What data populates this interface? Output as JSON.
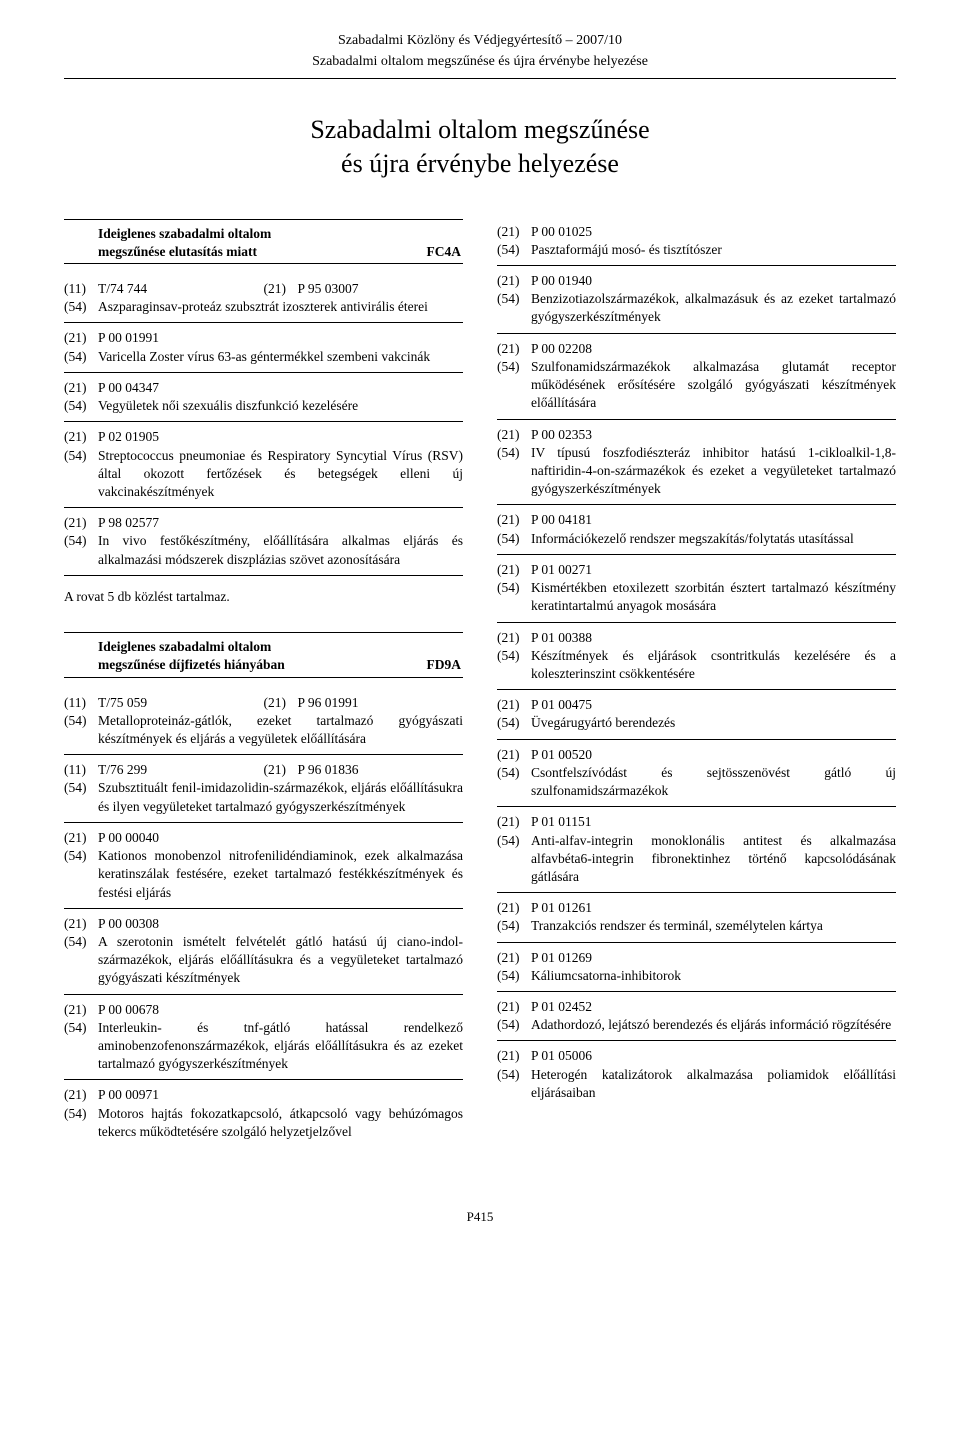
{
  "header": {
    "line1": "Szabadalmi Közlöny és Védjegyértesítő – 2007/10",
    "line2": "Szabadalmi oltalom megszűnése és újra érvénybe helyezése"
  },
  "main_title_l1": "Szabadalmi oltalom megszűnése",
  "main_title_l2": "és újra érvénybe helyezése",
  "footer": "P415",
  "section1": {
    "title_l1": "Ideiglenes szabadalmi oltalom",
    "title_l2": "megszűnése elutasítás miatt",
    "code": "FC4A"
  },
  "section2": {
    "title_l1": "Ideiglenes szabadalmi oltalom",
    "title_l2": "megszűnése díjfizetés hiányában",
    "code": "FD9A"
  },
  "note": "A rovat 5 db közlést tartalmaz.",
  "left_s1": [
    {
      "c11": "(11)",
      "v11": "T/74 744",
      "c21": "(21)",
      "v21": "P 95 03007",
      "c54": "(54)",
      "v54": "Aszparaginsav-proteáz szubsztrát izoszterek antivirális éterei"
    },
    {
      "c21": "(21)",
      "v21": "P 00 01991",
      "c54": "(54)",
      "v54": "Varicella Zoster vírus 63-as géntermékkel szembeni vakcinák"
    },
    {
      "c21": "(21)",
      "v21": "P 00 04347",
      "c54": "(54)",
      "v54": "Vegyületek női szexuális diszfunkció kezelésére"
    },
    {
      "c21": "(21)",
      "v21": "P 02 01905",
      "c54": "(54)",
      "v54": "Streptococcus pneumoniae és Respiratory Syncytial Vírus (RSV) által okozott fertőzések és betegségek elleni új vakcinakészítmények"
    },
    {
      "c21": "(21)",
      "v21": "P 98 02577",
      "c54": "(54)",
      "v54": "In vivo festőkészítmény, előállítására alkalmas eljárás és alkalmazási módszerek diszplázias szövet azonosítására"
    }
  ],
  "left_s2": [
    {
      "c11": "(11)",
      "v11": "T/75 059",
      "c21": "(21)",
      "v21": "P 96 01991",
      "c54": "(54)",
      "v54": "Metalloproteináz-gátlók, ezeket tartalmazó gyógyászati készítmények és eljárás a vegyületek előállítására"
    },
    {
      "c11": "(11)",
      "v11": "T/76 299",
      "c21": "(21)",
      "v21": "P 96 01836",
      "c54": "(54)",
      "v54": "Szubsztituált fenil-imidazolidin-származékok, eljárás előállításukra és ilyen vegyületeket tartalmazó gyógyszerkészítmények"
    },
    {
      "c21": "(21)",
      "v21": "P 00 00040",
      "c54": "(54)",
      "v54": "Kationos monobenzol nitrofenilidéndiaminok, ezek alkalmazása keratinszálak festésére, ezeket tartalmazó festékkészítmények és festési eljárás"
    },
    {
      "c21": "(21)",
      "v21": "P 00 00308",
      "c54": "(54)",
      "v54": "A szerotonin ismételt felvételét gátló hatású új ciano-indol-származékok, eljárás előállításukra és a vegyületeket tartalmazó gyógyászati készítmények"
    },
    {
      "c21": "(21)",
      "v21": "P 00 00678",
      "c54": "(54)",
      "v54": "Interleukin- és tnf-gátló hatással rendelkező aminobenzofenonszármazékok, eljárás előállításukra és az ezeket tartalmazó gyógyszerkészítmények"
    },
    {
      "c21": "(21)",
      "v21": "P 00 00971",
      "c54": "(54)",
      "v54": "Motoros hajtás fokozatkapcsoló, átkapcsoló vagy behúzómagos tekercs működtetésére szolgáló helyzetjelzővel"
    }
  ],
  "right": [
    {
      "c21": "(21)",
      "v21": "P 00 01025",
      "c54": "(54)",
      "v54": "Pasztaformájú mosó- és tisztítószer"
    },
    {
      "c21": "(21)",
      "v21": "P 00 01940",
      "c54": "(54)",
      "v54": "Benzizotiazolszármazékok, alkalmazásuk és az ezeket tartalmazó gyógyszerkészítmények"
    },
    {
      "c21": "(21)",
      "v21": "P 00 02208",
      "c54": "(54)",
      "v54": "Szulfonamidszármazékok alkalmazása glutamát receptor működésének erősítésére szolgáló gyógyászati készítmények előállítására"
    },
    {
      "c21": "(21)",
      "v21": "P 00 02353",
      "c54": "(54)",
      "v54": "IV típusú foszfodiészteráz inhibitor hatású 1-cikloalkil-1,8-naftiridin-4-on-származékok és ezeket a vegyületeket tartalmazó gyógyszerkészítmények"
    },
    {
      "c21": "(21)",
      "v21": "P 00 04181",
      "c54": "(54)",
      "v54": "Információkezelő rendszer megszakítás/folytatás utasítással"
    },
    {
      "c21": "(21)",
      "v21": "P 01 00271",
      "c54": "(54)",
      "v54": "Kismértékben etoxilezett szorbitán észtert tartalmazó készítmény keratintartalmú anyagok mosására"
    },
    {
      "c21": "(21)",
      "v21": "P 01 00388",
      "c54": "(54)",
      "v54": "Készítmények és eljárások csontritkulás kezelésére és a koleszterinszint csökkentésére"
    },
    {
      "c21": "(21)",
      "v21": "P 01 00475",
      "c54": "(54)",
      "v54": "Üvegárugyártó berendezés"
    },
    {
      "c21": "(21)",
      "v21": "P 01 00520",
      "c54": "(54)",
      "v54": "Csontfelszívódást és sejtösszenövést gátló új szulfonamidszármazékok"
    },
    {
      "c21": "(21)",
      "v21": "P 01 01151",
      "c54": "(54)",
      "v54": "Anti-alfav-integrin monoklonális antitest és alkalmazása alfavbéta6-integrin fibronektinhez történő kapcsolódásának gátlására"
    },
    {
      "c21": "(21)",
      "v21": "P 01 01261",
      "c54": "(54)",
      "v54": "Tranzakciós rendszer és terminál, személytelen kártya"
    },
    {
      "c21": "(21)",
      "v21": "P 01 01269",
      "c54": "(54)",
      "v54": "Káliumcsatorna-inhibitorok"
    },
    {
      "c21": "(21)",
      "v21": "P 01 02452",
      "c54": "(54)",
      "v54": "Adathordozó, lejátszó berendezés és eljárás információ rögzítésére"
    },
    {
      "c21": "(21)",
      "v21": "P 01 05006",
      "c54": "(54)",
      "v54": "Heterogén katalizátorok alkalmazása poliamidok előállítási eljárásaiban"
    }
  ]
}
